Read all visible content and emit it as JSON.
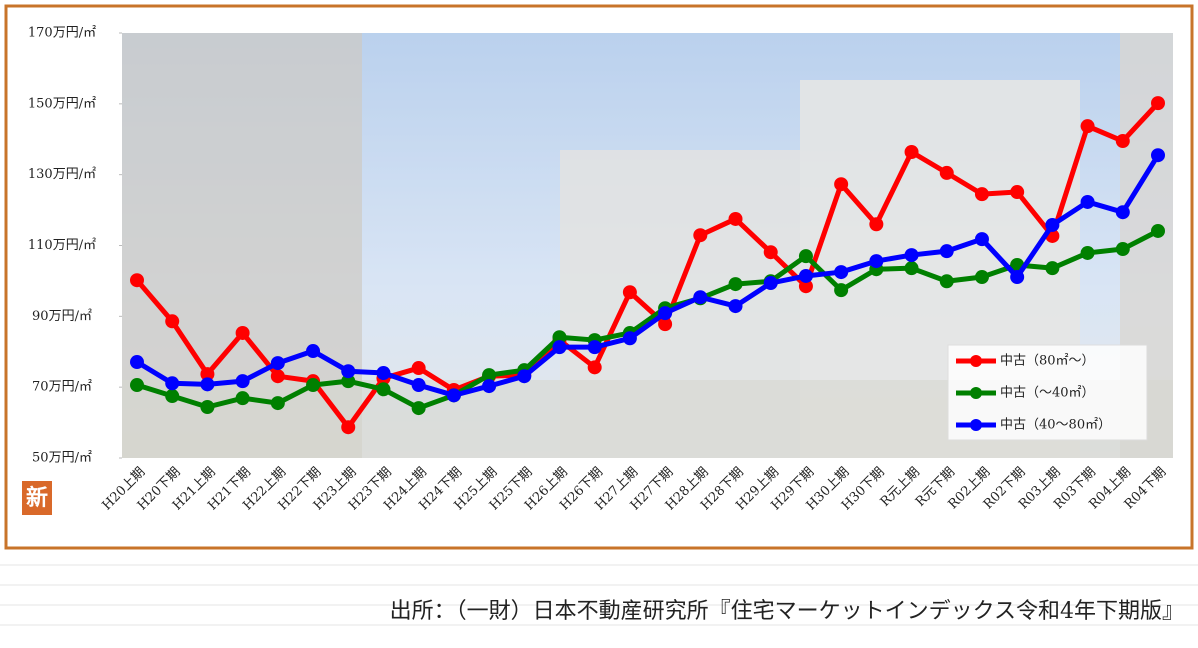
{
  "chart_data": {
    "type": "line",
    "badge": "新",
    "source": "出所：（一財）日本不動産研究所『住宅マーケットインデックス令和4年下期版』",
    "categories": [
      "H20上期",
      "H20下期",
      "H21上期",
      "H21下期",
      "H22上期",
      "H22下期",
      "H23上期",
      "H23下期",
      "H24上期",
      "H24下期",
      "H25上期",
      "H25下期",
      "H26上期",
      "H26下期",
      "H27上期",
      "H27下期",
      "H28上期",
      "H28下期",
      "H29上期",
      "H29下期",
      "H30上期",
      "H30下期",
      "R元上期",
      "R元下期",
      "R02上期",
      "R02下期",
      "R03上期",
      "R03下期",
      "R04上期",
      "R04下期"
    ],
    "series": [
      {
        "name": "中古（80㎡～）",
        "color": "#ff0000",
        "values": [
          100.2,
          88.6,
          73.7,
          85.3,
          73.1,
          71.7,
          58.7,
          72.5,
          75.4,
          69.2,
          73.1,
          73.4,
          83.3,
          75.6,
          96.8,
          87.8,
          112.9,
          117.5,
          108.1,
          98.5,
          127.3,
          116.0,
          136.4,
          130.5,
          124.5,
          125.1,
          112.7,
          143.7,
          139.5,
          150.2
        ]
      },
      {
        "name": "中古（～40㎡）",
        "color": "#008000",
        "values": [
          70.6,
          67.5,
          64.4,
          66.9,
          65.5,
          70.6,
          71.7,
          69.4,
          64.1,
          67.7,
          73.4,
          74.8,
          84.1,
          83.3,
          85.3,
          92.3,
          95.1,
          99.1,
          99.9,
          107.0,
          97.4,
          103.3,
          103.6,
          99.9,
          101.1,
          104.5,
          103.6,
          107.9,
          109.0,
          114.1
        ]
      },
      {
        "name": "中古（40～80㎡）",
        "color": "#0000ff",
        "values": [
          77.1,
          71.1,
          70.8,
          71.7,
          76.8,
          80.2,
          74.5,
          74.0,
          70.6,
          67.7,
          70.3,
          73.1,
          81.3,
          81.3,
          83.8,
          90.9,
          95.4,
          92.9,
          99.4,
          101.4,
          102.5,
          105.6,
          107.3,
          108.4,
          111.8,
          101.1,
          115.8,
          122.3,
          119.4,
          135.5
        ]
      }
    ],
    "ylim": [
      50,
      170
    ],
    "yticks": [
      {
        "value": 50,
        "label": "50万円/㎡"
      },
      {
        "value": 70,
        "label": "70万円/㎡"
      },
      {
        "value": 90,
        "label": "90万円/㎡"
      },
      {
        "value": 110,
        "label": "110万円/㎡"
      },
      {
        "value": 130,
        "label": "130万円/㎡"
      },
      {
        "value": 150,
        "label": "150万円/㎡"
      },
      {
        "value": 170,
        "label": "170万円/㎡"
      }
    ],
    "grid": false,
    "legend": "right"
  }
}
